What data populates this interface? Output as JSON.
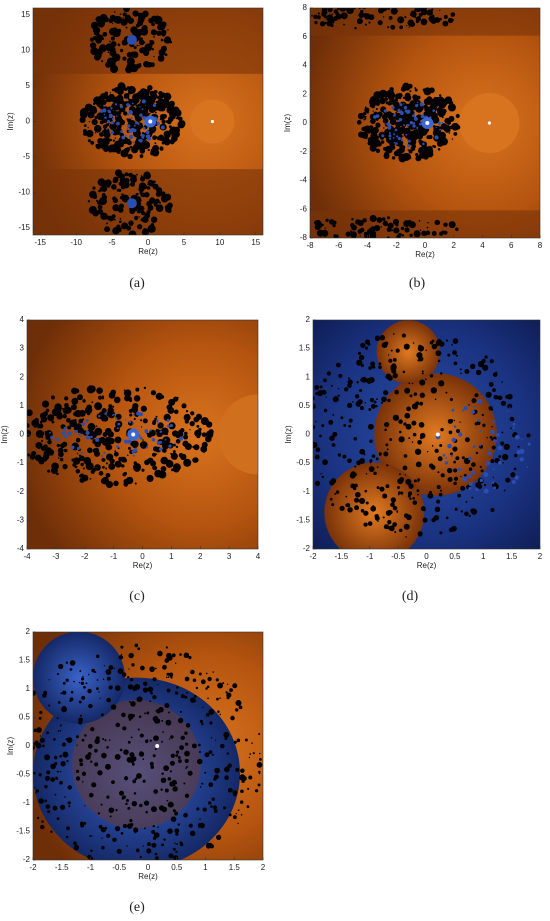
{
  "chart_data": [
    {
      "type": "image",
      "caption": "(a)",
      "xlabel": "Re(z)",
      "ylabel": "Im(z)",
      "xlim": [
        -16,
        16
      ],
      "ylim": [
        -16,
        16
      ],
      "xticks": [
        -15,
        -10,
        -5,
        0,
        5,
        10,
        15
      ],
      "yticks": [
        -15,
        -10,
        -5,
        0,
        5,
        10,
        15
      ]
    },
    {
      "type": "image",
      "caption": "(b)",
      "xlabel": "Re(z)",
      "ylabel": "Im(z)",
      "xlim": [
        -8,
        8
      ],
      "ylim": [
        -8,
        8
      ],
      "xticks": [
        -8,
        -6,
        -4,
        -2,
        0,
        2,
        4,
        6,
        8
      ],
      "yticks": [
        -8,
        -6,
        -4,
        -2,
        0,
        2,
        4,
        6,
        8
      ]
    },
    {
      "type": "image",
      "caption": "(c)",
      "xlabel": "Re(z)",
      "ylabel": "Im(z)",
      "xlim": [
        -4,
        4
      ],
      "ylim": [
        -4,
        4
      ],
      "xticks": [
        -4,
        -3,
        -2,
        -1,
        0,
        1,
        2,
        3,
        4
      ],
      "yticks": [
        -4,
        -3,
        -2,
        -1,
        0,
        1,
        2,
        3,
        4
      ]
    },
    {
      "type": "image",
      "caption": "(d)",
      "xlabel": "Re(z)",
      "ylabel": "Im(z)",
      "xlim": [
        -2,
        2
      ],
      "ylim": [
        -2,
        2
      ],
      "xticks": [
        -2,
        -1.5,
        -1,
        -0.5,
        0,
        0.5,
        1,
        1.5,
        2
      ],
      "yticks": [
        -2,
        -1.5,
        -1,
        -0.5,
        0,
        0.5,
        1,
        1.5,
        2
      ]
    },
    {
      "type": "image",
      "caption": "(e)",
      "xlabel": "Re(z)",
      "ylabel": "Im(z)",
      "xlim": [
        -2,
        2
      ],
      "ylim": [
        -2,
        2
      ],
      "xticks": [
        -2,
        -1.5,
        -1,
        -0.5,
        0,
        0.5,
        1,
        1.5,
        2
      ],
      "yticks": [
        -2,
        -1.5,
        -1,
        -0.5,
        0,
        0.5,
        1,
        1.5,
        2
      ]
    }
  ]
}
